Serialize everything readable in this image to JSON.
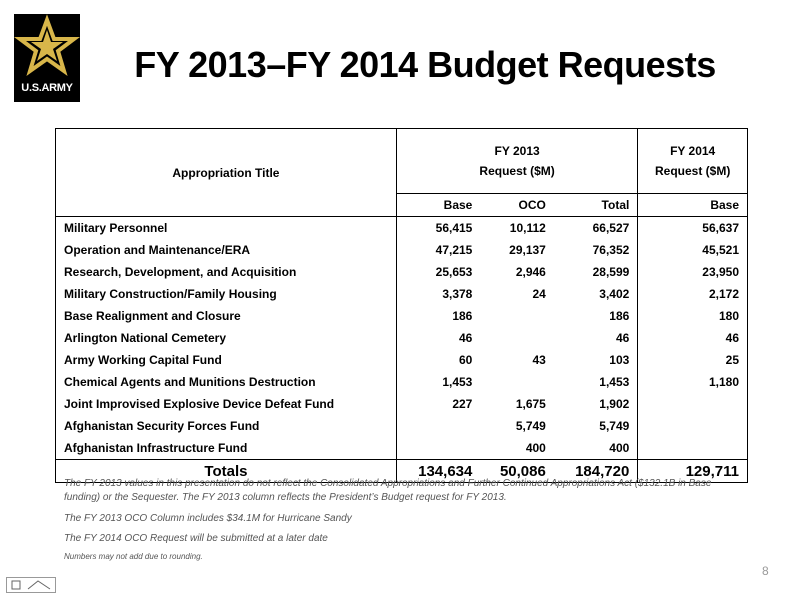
{
  "header": {
    "logo_text": "U.S.ARMY",
    "title": "FY 2013–FY 2014 Budget Requests"
  },
  "table": {
    "title_header": "Appropriation Title",
    "group_headers": [
      [
        "FY 2013",
        "Request ($M)"
      ],
      [
        "FY 2014",
        "Request ($M)"
      ]
    ],
    "columns": [
      "Base",
      "OCO",
      "Total",
      "Base"
    ],
    "rows": [
      [
        "Military Personnel",
        "56,415",
        "10,112",
        "66,527",
        "56,637"
      ],
      [
        "Operation and Maintenance/ERA",
        "47,215",
        "29,137",
        "76,352",
        "45,521"
      ],
      [
        "Research, Development, and Acquisition",
        "25,653",
        "2,946",
        "28,599",
        "23,950"
      ],
      [
        "Military Construction/Family Housing",
        "3,378",
        "24",
        "3,402",
        "2,172"
      ],
      [
        "Base Realignment and Closure",
        "186",
        null,
        "186",
        "180"
      ],
      [
        "Arlington National Cemetery",
        "46",
        null,
        "46",
        "46"
      ],
      [
        "Army Working Capital Fund",
        "60",
        "43",
        "103",
        "25"
      ],
      [
        "Chemical Agents and Munitions Destruction",
        "1,453",
        null,
        "1,453",
        "1,180"
      ],
      [
        "Joint Improvised Explosive Device Defeat Fund",
        "227",
        "1,675",
        "1,902",
        null
      ],
      [
        "Afghanistan Security Forces Fund",
        null,
        "5,749",
        "5,749",
        null
      ],
      [
        "Afghanistan Infrastructure Fund",
        null,
        "400",
        "400",
        null
      ]
    ],
    "totals": [
      "Totals",
      "134,634",
      "50,086",
      "184,720",
      "129,711"
    ]
  },
  "notes": [
    "The FY 2013 values in this presentation do not reflect the Consolidated Appropriations and Further Continued Appropriations Act ($132.1B in Base funding) or the Sequester. The FY 2013 column reflects the President’s Budget request for FY 2013.",
    "The FY 2013 OCO Column includes $34.1M for Hurricane Sandy",
    "The FY 2014 OCO Request will be submitted at a later date",
    "Numbers may not add due to rounding."
  ],
  "page_number": "8"
}
